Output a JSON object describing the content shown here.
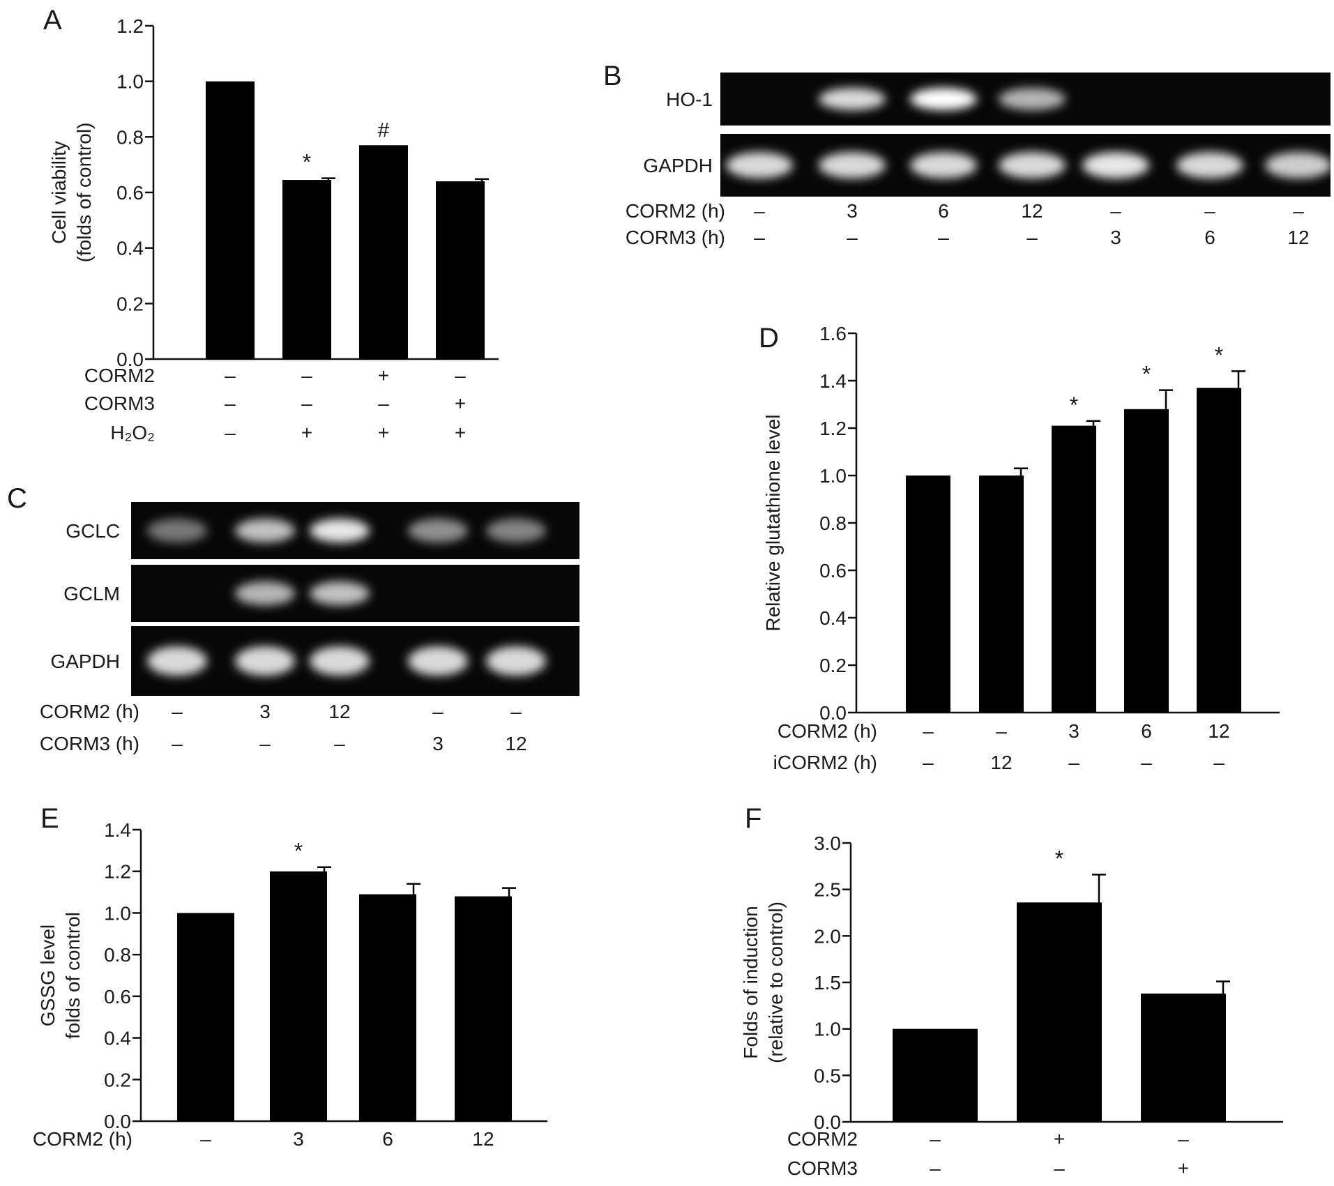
{
  "colors": {
    "bar": "#000000",
    "gel_background": "#070707",
    "band": "#ffffff"
  },
  "panels": {
    "A": {
      "letter": "A"
    },
    "B": {
      "letter": "B",
      "rows": [
        {
          "label": "HO-1",
          "bands": [
            0,
            0.85,
            1.0,
            0.7,
            0,
            0,
            0
          ]
        },
        {
          "label": "GAPDH",
          "bands": [
            0.85,
            0.85,
            0.85,
            0.85,
            0.9,
            0.85,
            0.8
          ]
        }
      ],
      "conditions": [
        {
          "label": "CORM2 (h)",
          "values": [
            "–",
            "3",
            "6",
            "12",
            "–",
            "–",
            "–"
          ]
        },
        {
          "label": "CORM3 (h)",
          "values": [
            "–",
            "–",
            "–",
            "–",
            "3",
            "6",
            "12"
          ]
        }
      ]
    },
    "C": {
      "letter": "C",
      "rows": [
        {
          "label": "GCLC",
          "bands": [
            0.45,
            0.75,
            0.9,
            0.55,
            0.5
          ]
        },
        {
          "label": "GCLM",
          "bands": [
            0,
            0.7,
            0.75,
            0,
            0
          ]
        },
        {
          "label": "GAPDH",
          "bands": [
            0.85,
            0.85,
            0.85,
            0.85,
            0.85
          ]
        }
      ],
      "conditions": [
        {
          "label": "CORM2 (h)",
          "values": [
            "–",
            "3",
            "12",
            "–",
            "–"
          ]
        },
        {
          "label": "CORM3 (h)",
          "values": [
            "–",
            "–",
            "–",
            "3",
            "12"
          ]
        }
      ]
    },
    "D": {
      "letter": "D"
    },
    "E": {
      "letter": "E"
    },
    "F": {
      "letter": "F"
    }
  },
  "chart_data": [
    {
      "panel": "A",
      "type": "bar",
      "ylabel_lines": [
        "Cell viability",
        "(folds of control)"
      ],
      "ylim": [
        0,
        1.2
      ],
      "yticks": [
        "0.0",
        "0.2",
        "0.4",
        "0.6",
        "0.8",
        "1.0",
        "1.2"
      ],
      "values": [
        1.0,
        0.645,
        0.77,
        0.64
      ],
      "errors": [
        0,
        0.006,
        0,
        0.008
      ],
      "annotations": [
        "",
        "*",
        "#",
        ""
      ],
      "condition_rows": [
        {
          "label": "CORM2",
          "values": [
            "–",
            "–",
            "+",
            "–"
          ]
        },
        {
          "label": "CORM3",
          "values": [
            "–",
            "–",
            "–",
            "+"
          ]
        },
        {
          "label": "H₂O₂",
          "values": [
            "–",
            "+",
            "+",
            "+"
          ]
        }
      ],
      "grid": false
    },
    {
      "panel": "D",
      "type": "bar",
      "ylabel_lines": [
        "Relative glutathione level"
      ],
      "ylim": [
        0,
        1.6
      ],
      "yticks": [
        "0.0",
        "0.2",
        "0.4",
        "0.6",
        "0.8",
        "1.0",
        "1.2",
        "1.4",
        "1.6"
      ],
      "values": [
        1.0,
        1.0,
        1.21,
        1.28,
        1.37
      ],
      "errors": [
        0,
        0.03,
        0.02,
        0.08,
        0.07
      ],
      "annotations": [
        "",
        "",
        "*",
        "*",
        "*"
      ],
      "condition_rows": [
        {
          "label": "CORM2 (h)",
          "values": [
            "–",
            "–",
            "3",
            "6",
            "12"
          ]
        },
        {
          "label": "iCORM2 (h)",
          "values": [
            "–",
            "12",
            "–",
            "–",
            "–"
          ]
        }
      ],
      "grid": false
    },
    {
      "panel": "E",
      "type": "bar",
      "ylabel_lines": [
        "GSSG level",
        "folds of control"
      ],
      "ylim": [
        0,
        1.4
      ],
      "yticks": [
        "0.0",
        "0.2",
        "0.4",
        "0.6",
        "0.8",
        "1.0",
        "1.2",
        "1.4"
      ],
      "values": [
        1.0,
        1.2,
        1.09,
        1.08
      ],
      "errors": [
        0,
        0.02,
        0.05,
        0.04
      ],
      "annotations": [
        "",
        "*",
        "",
        ""
      ],
      "condition_rows": [
        {
          "label": "CORM2 (h)",
          "values": [
            "–",
            "3",
            "6",
            "12"
          ]
        }
      ],
      "grid": false
    },
    {
      "panel": "F",
      "type": "bar",
      "ylabel_lines": [
        "Folds of induction",
        "(relative to control)"
      ],
      "ylim": [
        0,
        3.0
      ],
      "yticks": [
        "0.0",
        "0.5",
        "1.0",
        "1.5",
        "2.0",
        "2.5",
        "3.0"
      ],
      "values": [
        1.0,
        2.36,
        1.38
      ],
      "errors": [
        0,
        0.3,
        0.13
      ],
      "annotations": [
        "",
        "*",
        ""
      ],
      "condition_rows": [
        {
          "label": "CORM2",
          "values": [
            "–",
            "+",
            "–"
          ]
        },
        {
          "label": "CORM3",
          "values": [
            "–",
            "–",
            "+"
          ]
        }
      ],
      "grid": false
    }
  ]
}
